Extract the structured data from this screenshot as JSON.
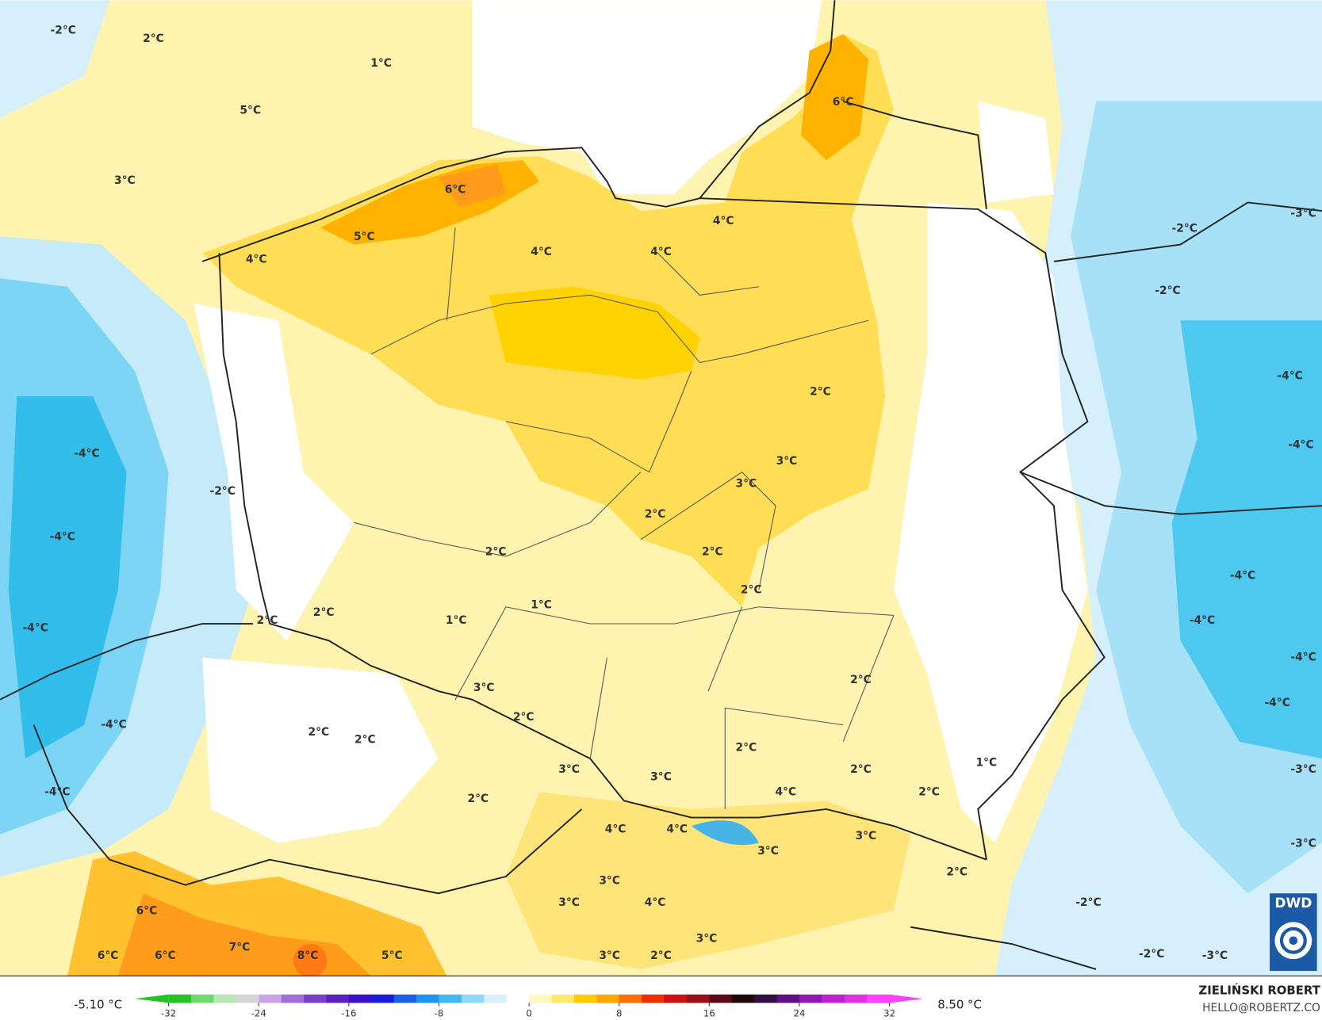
{
  "map": {
    "labels": [
      "-2°C",
      "2°C",
      "1°C",
      "5°C",
      "3°C",
      "6°C",
      "5°C",
      "4°C",
      "4°C",
      "4°C",
      "4°C",
      "6°C",
      "-2°C",
      "-3°C",
      "-2°C",
      "-4°C",
      "-4°C",
      "2°C",
      "3°C",
      "3°C",
      "2°C",
      "2°C",
      "2°C",
      "2°C",
      "1°C",
      "1°C",
      "2°C",
      "2°C",
      "-4°C",
      "-2°C",
      "-4°C",
      "-4°C",
      "-4°C",
      "-4°C",
      "3°C",
      "2°C",
      "2°C",
      "2°C",
      "3°C",
      "2°C",
      "3°C",
      "2°C",
      "4°C",
      "2°C",
      "2°C",
      "2°C",
      "1°C",
      "4°C",
      "4°C",
      "3°C",
      "3°C",
      "2°C",
      "3°C",
      "4°C",
      "3°C",
      "3°C",
      "3°C",
      "2°C",
      "6°C",
      "6°C",
      "6°C",
      "7°C",
      "8°C",
      "5°C",
      "-4°C",
      "-4°C",
      "-4°C",
      "-4°C",
      "-3°C",
      "-3°C",
      "-2°C",
      "-2°C",
      "-3°C"
    ]
  },
  "legend": {
    "min_label": "-5.10 °C",
    "max_label": "8.50 °C",
    "ticks": [
      -32,
      -24,
      -16,
      -8,
      0,
      8,
      16,
      24,
      32
    ]
  },
  "credits": {
    "author": "ZIELIŃSKI ROBERT",
    "email": "HELLO@ROBERTZ.CO"
  },
  "logo": {
    "text": "DWD"
  }
}
